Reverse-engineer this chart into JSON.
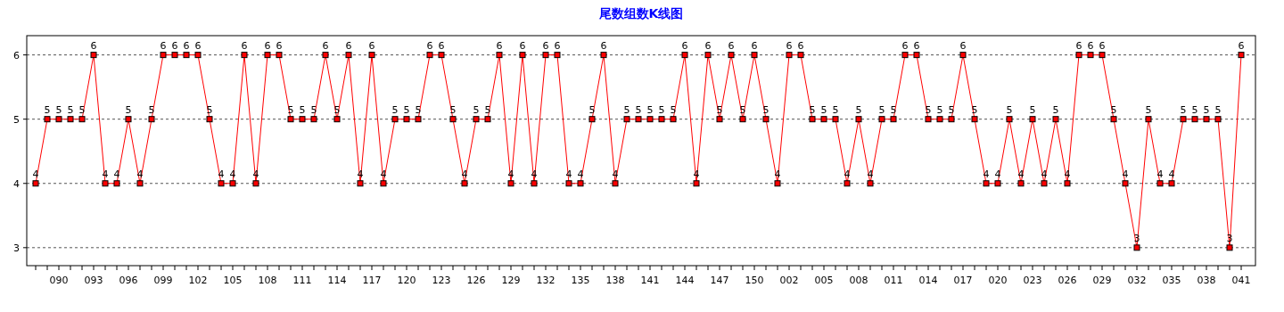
{
  "chart_data": {
    "type": "line",
    "title": "尾数组数K线图",
    "categories": [
      null,
      null,
      "090",
      null,
      null,
      "093",
      null,
      null,
      "096",
      null,
      null,
      "099",
      null,
      null,
      "102",
      null,
      null,
      "105",
      null,
      null,
      "108",
      null,
      null,
      "111",
      null,
      null,
      "114",
      null,
      null,
      "117",
      null,
      null,
      "120",
      null,
      null,
      "123",
      null,
      null,
      "126",
      null,
      null,
      "129",
      null,
      null,
      "132",
      null,
      null,
      "135",
      null,
      null,
      "138",
      null,
      null,
      "141",
      null,
      null,
      "144",
      null,
      null,
      "147",
      null,
      null,
      "150",
      null,
      null,
      "002",
      null,
      null,
      "005",
      null,
      null,
      "008",
      null,
      null,
      "011",
      null,
      null,
      "014",
      null,
      null,
      "017",
      null,
      null,
      "020",
      null,
      null,
      "023",
      null,
      null,
      "026",
      null,
      null,
      "029",
      null,
      null,
      "032",
      null,
      null,
      "035",
      null,
      null,
      "038",
      null,
      null,
      "041"
    ],
    "values": [
      4,
      5,
      5,
      5,
      5,
      6,
      4,
      4,
      5,
      4,
      5,
      6,
      6,
      6,
      6,
      5,
      4,
      4,
      6,
      4,
      6,
      6,
      5,
      5,
      5,
      6,
      5,
      6,
      4,
      6,
      4,
      5,
      5,
      5,
      6,
      6,
      5,
      4,
      5,
      5,
      6,
      4,
      6,
      4,
      6,
      6,
      4,
      4,
      5,
      6,
      4,
      5,
      5,
      5,
      5,
      5,
      6,
      4,
      6,
      5,
      6,
      5,
      6,
      5,
      4,
      6,
      6,
      5,
      5,
      5,
      4,
      5,
      4,
      5,
      5,
      6,
      6,
      5,
      5,
      5,
      6,
      5,
      4,
      4,
      5,
      4,
      5,
      4,
      5,
      4,
      6,
      6,
      6,
      5,
      4,
      3,
      5,
      4,
      4,
      5,
      5,
      5,
      5,
      3,
      6
    ],
    "color": "#ff0000",
    "ylim": [
      2.72,
      6.3
    ],
    "yticks": [
      3,
      4,
      5,
      6
    ],
    "grid": "y",
    "marker": "square",
    "data_labels": true
  }
}
